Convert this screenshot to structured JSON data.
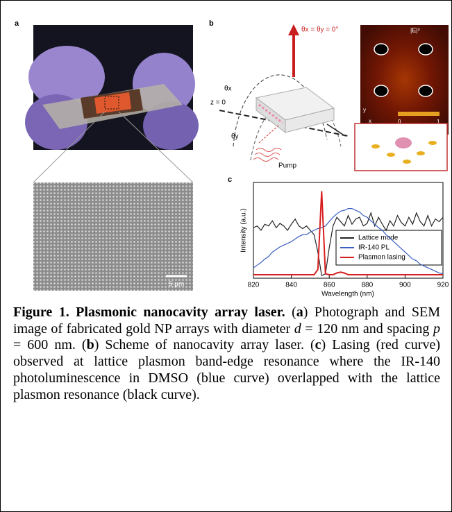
{
  "panels": {
    "a": {
      "label": "a",
      "scale_bar": "5 μm"
    },
    "b": {
      "label": "b",
      "angle_top": "θx = θy = 0°",
      "theta_x": "θx",
      "theta_y": "θy",
      "z_plane": "z = 0",
      "pump": "Pump",
      "field_label": "|E|²",
      "colorbar_min": "0",
      "colorbar_max": "1",
      "axis_y": "y",
      "axis_x": "x"
    },
    "c": {
      "label": "c"
    }
  },
  "chart_data": {
    "type": "line",
    "xlabel": "Wavelength (nm)",
    "ylabel": "Intensity (a.u.)",
    "x": [
      820,
      822,
      824,
      826,
      828,
      830,
      832,
      834,
      836,
      838,
      840,
      842,
      844,
      846,
      848,
      850,
      852,
      854,
      856,
      858,
      860,
      862,
      864,
      866,
      868,
      870,
      872,
      874,
      876,
      878,
      880,
      882,
      884,
      886,
      888,
      890,
      892,
      894,
      896,
      898,
      900,
      902,
      904,
      906,
      908,
      910,
      912,
      914,
      916,
      918,
      920
    ],
    "xlim": [
      820,
      920
    ],
    "xticks": [
      820,
      840,
      860,
      880,
      900,
      920
    ],
    "ylim": [
      0,
      1.1
    ],
    "legend": "center right",
    "series": [
      {
        "name": "Lattice mode",
        "color": "#222222",
        "values": [
          0.58,
          0.6,
          0.55,
          0.62,
          0.6,
          0.66,
          0.58,
          0.63,
          0.6,
          0.55,
          0.62,
          0.68,
          0.6,
          0.57,
          0.6,
          0.55,
          0.5,
          0.3,
          0.03,
          0.05,
          0.35,
          0.6,
          0.7,
          0.65,
          0.6,
          0.72,
          0.62,
          0.68,
          0.7,
          0.6,
          0.63,
          0.75,
          0.6,
          0.7,
          0.62,
          0.55,
          0.66,
          0.6,
          0.72,
          0.64,
          0.6,
          0.7,
          0.62,
          0.75,
          0.65,
          0.6,
          0.72,
          0.6,
          0.68,
          0.65,
          0.7
        ]
      },
      {
        "name": "IR-140 PL",
        "color": "#3b5fc0",
        "values": [
          0.12,
          0.15,
          0.18,
          0.22,
          0.25,
          0.3,
          0.33,
          0.36,
          0.38,
          0.4,
          0.42,
          0.45,
          0.48,
          0.5,
          0.5,
          0.53,
          0.55,
          0.57,
          0.58,
          0.6,
          0.65,
          0.7,
          0.74,
          0.77,
          0.78,
          0.8,
          0.8,
          0.78,
          0.76,
          0.72,
          0.7,
          0.66,
          0.62,
          0.58,
          0.55,
          0.5,
          0.46,
          0.42,
          0.38,
          0.34,
          0.3,
          0.26,
          0.22,
          0.2,
          0.16,
          0.14,
          0.12,
          0.1,
          0.08,
          0.06,
          0.05
        ]
      },
      {
        "name": "Plasmon lasing",
        "color": "#d81e1e",
        "values": [
          0.04,
          0.04,
          0.04,
          0.04,
          0.04,
          0.04,
          0.04,
          0.04,
          0.04,
          0.04,
          0.04,
          0.04,
          0.04,
          0.04,
          0.04,
          0.04,
          0.04,
          0.1,
          1.0,
          0.05,
          0.04,
          0.04,
          0.06,
          0.07,
          0.06,
          0.04,
          0.04,
          0.04,
          0.04,
          0.04,
          0.04,
          0.04,
          0.04,
          0.04,
          0.04,
          0.04,
          0.04,
          0.04,
          0.04,
          0.04,
          0.04,
          0.04,
          0.04,
          0.04,
          0.04,
          0.04,
          0.04,
          0.04,
          0.04,
          0.04,
          0.04
        ]
      }
    ]
  },
  "caption": {
    "runs": [
      "Figure 1. Plasmonic nanocavity array laser.",
      " (",
      "a",
      ") Photograph and SEM image of fabricated gold NP arrays with diameter ",
      "d",
      " = 120 nm and spacing ",
      "p",
      " = 600 nm. (",
      "b",
      ") Scheme of nanocavity array laser. (",
      "c",
      ") Lasing (red curve) observed at lattice plasmon band-edge resonance where the IR-140 photoluminescence in DMSO (blue curve) overlapped with the lattice plasmon resonance (black curve)."
    ]
  }
}
